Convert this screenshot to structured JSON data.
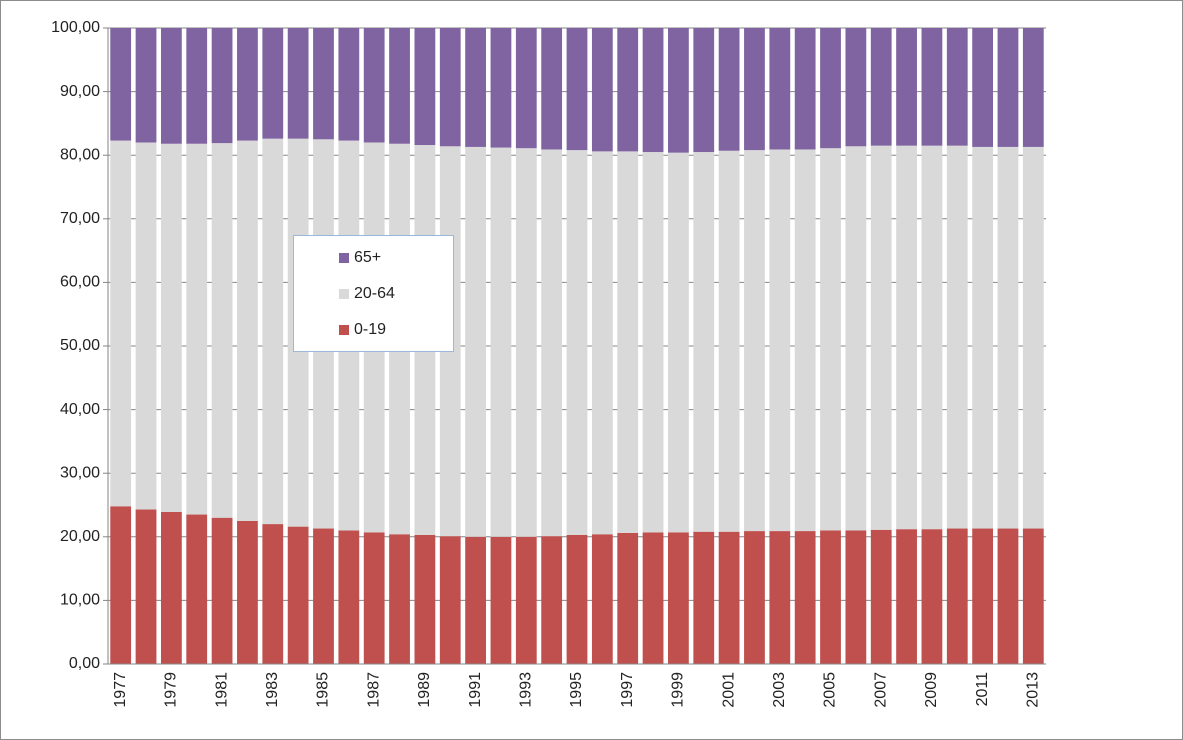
{
  "chart_data": {
    "type": "stacked_bar",
    "categories": [
      "1977",
      null,
      "1979",
      null,
      "1981",
      null,
      "1983",
      null,
      "1985",
      null,
      "1987",
      null,
      "1989",
      null,
      "1991",
      null,
      "1993",
      null,
      "1995",
      null,
      "1997",
      null,
      "1999",
      null,
      "2001",
      null,
      "2003",
      null,
      "2005",
      null,
      "2007",
      null,
      "2009",
      null,
      "2011",
      null,
      "2013"
    ],
    "series": [
      {
        "name": "0-19",
        "color": "#c0504d",
        "values": [
          24.8,
          24.3,
          23.9,
          23.5,
          23.0,
          22.5,
          22.0,
          21.6,
          21.3,
          21.0,
          20.7,
          20.4,
          20.3,
          20.1,
          20.0,
          20.0,
          20.0,
          20.1,
          20.3,
          20.4,
          20.6,
          20.7,
          20.7,
          20.8,
          20.8,
          20.9,
          20.9,
          20.9,
          21.0,
          21.0,
          21.1,
          21.2,
          21.2,
          21.3,
          21.3,
          21.3,
          21.3
        ]
      },
      {
        "name": "20-64",
        "color": "#d9d9d9",
        "values": [
          57.5,
          57.7,
          57.9,
          58.3,
          58.9,
          59.8,
          60.6,
          61.0,
          61.2,
          61.3,
          61.3,
          61.4,
          61.3,
          61.3,
          61.3,
          61.2,
          61.1,
          60.8,
          60.5,
          60.2,
          60.0,
          59.8,
          59.7,
          59.7,
          59.9,
          59.9,
          60.0,
          60.0,
          60.1,
          60.4,
          60.4,
          60.3,
          60.3,
          60.2,
          60.0,
          60.0,
          60.0
        ]
      },
      {
        "name": "65+",
        "color": "#8064a2",
        "values": [
          17.7,
          18.0,
          18.2,
          18.2,
          18.1,
          17.7,
          17.4,
          17.4,
          17.5,
          17.7,
          18.0,
          18.2,
          18.4,
          18.6,
          18.7,
          18.8,
          18.9,
          19.1,
          19.2,
          19.4,
          19.4,
          19.5,
          19.6,
          19.5,
          19.3,
          19.2,
          19.1,
          19.1,
          18.9,
          18.6,
          18.5,
          18.5,
          18.5,
          18.5,
          18.7,
          18.7,
          18.7
        ]
      }
    ],
    "ylim": [
      0,
      100
    ],
    "yticks": [
      {
        "value": 0,
        "label": "0,00"
      },
      {
        "value": 10,
        "label": "10,00"
      },
      {
        "value": 20,
        "label": "20,00"
      },
      {
        "value": 30,
        "label": "30,00"
      },
      {
        "value": 40,
        "label": "40,00"
      },
      {
        "value": 50,
        "label": "50,00"
      },
      {
        "value": 60,
        "label": "60,00"
      },
      {
        "value": 70,
        "label": "70,00"
      },
      {
        "value": 80,
        "label": "80,00"
      },
      {
        "value": 90,
        "label": "90,00"
      },
      {
        "value": 100,
        "label": "100,00"
      }
    ],
    "grid": true
  }
}
